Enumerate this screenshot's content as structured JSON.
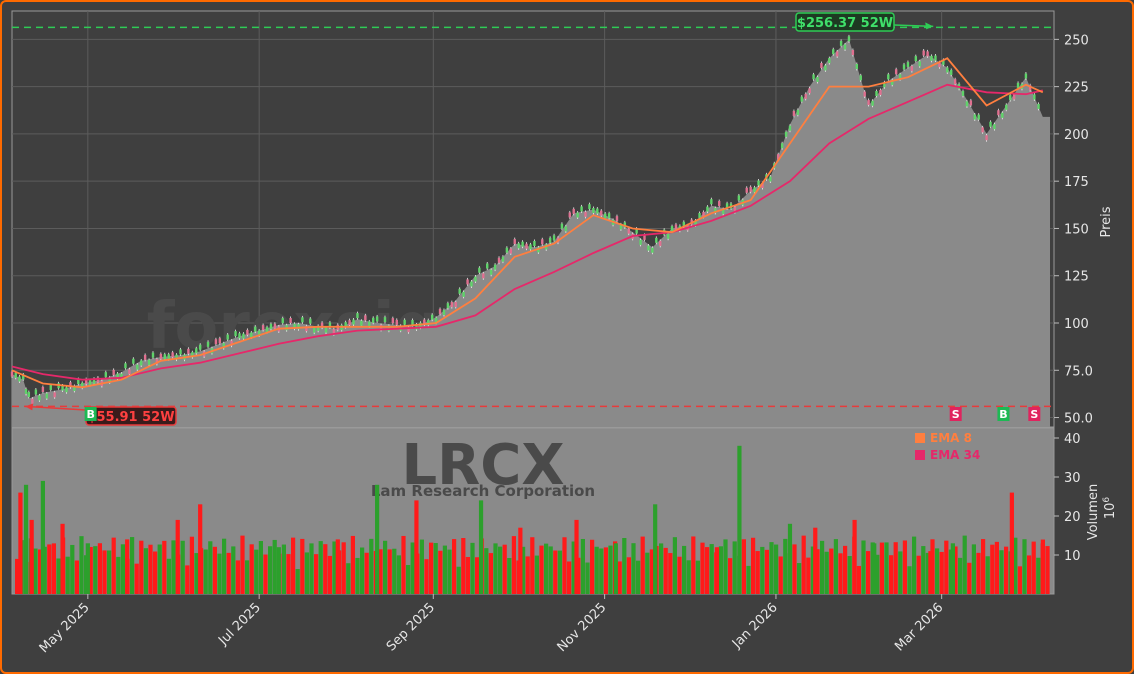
{
  "watermark": {
    "site": "forexsignale.trade",
    "ticker": "LRCX",
    "company": "Lam Research Corporation"
  },
  "colors": {
    "background": "#3f3f3f",
    "border": "#ff6a00",
    "area": "#8a8a8a",
    "up": "#2ca02c",
    "down": "#ff1a1a",
    "ema8": "#ff7f3f",
    "ema34": "#e6286a",
    "high_line": "#2ecc55",
    "low_line": "#e83b3b"
  },
  "chart_data": [
    {
      "type": "line",
      "title": "",
      "ylabel": "Preis",
      "ylim": [
        45,
        265
      ],
      "y_ticks": [
        "50.0",
        "75.0",
        "100",
        "125",
        "150",
        "175",
        "200",
        "225",
        "250"
      ],
      "x_ticks": [
        "May 2025",
        "Jul 2025",
        "Sep 2025",
        "Nov 2025",
        "Jan 2026",
        "Mar 2026"
      ],
      "x_tick_dates": [
        "2025-05-01",
        "2025-07-01",
        "2025-09-01",
        "2025-11-01",
        "2026-01-01",
        "2026-03-01"
      ],
      "x_range": [
        "2025-04-04",
        "2026-04-10"
      ],
      "series": [
        {
          "name": "",
          "kind": "close-area",
          "x": [
            "2025-04-04",
            "2025-04-08",
            "2025-04-10",
            "2025-04-15",
            "2025-04-22",
            "2025-04-29",
            "2025-05-06",
            "2025-05-13",
            "2025-05-20",
            "2025-05-27",
            "2025-06-03",
            "2025-06-10",
            "2025-06-17",
            "2025-06-24",
            "2025-07-01",
            "2025-07-08",
            "2025-07-15",
            "2025-07-22",
            "2025-07-29",
            "2025-08-05",
            "2025-08-12",
            "2025-08-19",
            "2025-08-26",
            "2025-09-02",
            "2025-09-09",
            "2025-09-16",
            "2025-09-23",
            "2025-09-30",
            "2025-10-07",
            "2025-10-14",
            "2025-10-21",
            "2025-10-28",
            "2025-11-04",
            "2025-11-11",
            "2025-11-18",
            "2025-11-25",
            "2025-12-02",
            "2025-12-09",
            "2025-12-16",
            "2025-12-23",
            "2025-12-30",
            "2026-01-06",
            "2026-01-13",
            "2026-01-20",
            "2026-01-27",
            "2026-02-03",
            "2026-02-10",
            "2026-02-17",
            "2026-02-24",
            "2026-03-03",
            "2026-03-10",
            "2026-03-17",
            "2026-03-24",
            "2026-03-31",
            "2026-04-06"
          ],
          "values": [
            73,
            70,
            60,
            63,
            65,
            68,
            70,
            74,
            80,
            82,
            83,
            85,
            89,
            93,
            96,
            99,
            100,
            98,
            97,
            102,
            100,
            99,
            98,
            103,
            112,
            125,
            130,
            142,
            140,
            143,
            158,
            160,
            155,
            148,
            140,
            150,
            152,
            162,
            160,
            170,
            177,
            205,
            225,
            240,
            250,
            215,
            228,
            235,
            242,
            235,
            218,
            200,
            215,
            230,
            209
          ]
        },
        {
          "name": "EMA 8",
          "x": [
            "2025-04-04",
            "2025-04-15",
            "2025-04-29",
            "2025-05-13",
            "2025-05-27",
            "2025-06-10",
            "2025-06-24",
            "2025-07-08",
            "2025-07-22",
            "2025-08-05",
            "2025-08-19",
            "2025-09-02",
            "2025-09-16",
            "2025-09-30",
            "2025-10-14",
            "2025-10-28",
            "2025-11-11",
            "2025-11-25",
            "2025-12-09",
            "2025-12-23",
            "2026-01-06",
            "2026-01-20",
            "2026-02-03",
            "2026-02-17",
            "2026-03-03",
            "2026-03-17",
            "2026-03-31",
            "2026-04-06"
          ],
          "values": [
            75,
            68,
            66,
            70,
            80,
            83,
            90,
            97,
            98,
            98,
            98,
            100,
            113,
            135,
            142,
            157,
            150,
            148,
            158,
            165,
            195,
            225,
            225,
            230,
            240,
            215,
            226,
            222
          ]
        },
        {
          "name": "EMA 34",
          "x": [
            "2025-04-04",
            "2025-04-15",
            "2025-04-29",
            "2025-05-13",
            "2025-05-27",
            "2025-06-10",
            "2025-06-24",
            "2025-07-08",
            "2025-07-22",
            "2025-08-05",
            "2025-08-19",
            "2025-09-02",
            "2025-09-16",
            "2025-09-30",
            "2025-10-14",
            "2025-10-28",
            "2025-11-11",
            "2025-11-25",
            "2025-12-09",
            "2025-12-23",
            "2026-01-06",
            "2026-01-20",
            "2026-02-03",
            "2026-02-17",
            "2026-03-03",
            "2026-03-17",
            "2026-03-31",
            "2026-04-06"
          ],
          "values": [
            77,
            73,
            70,
            71,
            76,
            79,
            84,
            89,
            93,
            96,
            97,
            98,
            104,
            118,
            127,
            137,
            146,
            148,
            154,
            162,
            175,
            195,
            208,
            217,
            226,
            222,
            221,
            223
          ]
        }
      ],
      "annotations": [
        {
          "text": "$256.37 52W",
          "date": "2026-02-26",
          "value": 256.37,
          "kind": "52w-high"
        },
        {
          "text": "$55.91 52W",
          "date": "2025-04-08",
          "value": 55.91,
          "kind": "52w-low"
        }
      ],
      "signals": [
        {
          "label": "B",
          "date": "2025-05-02",
          "kind": "buy"
        },
        {
          "label": "S",
          "date": "2026-03-06",
          "kind": "sell"
        },
        {
          "label": "B",
          "date": "2026-03-23",
          "kind": "buy"
        },
        {
          "label": "S",
          "date": "2026-04-03",
          "kind": "sell"
        }
      ],
      "legend": {
        "position": "top-right-of-volume-panel"
      }
    },
    {
      "type": "bar",
      "title": "",
      "ylabel": "Volumen",
      "ylabel_unit": "10^6",
      "y_ticks": [
        "10",
        "20",
        "30",
        "40"
      ],
      "ylim": [
        0,
        40
      ],
      "x": [
        "2025-04-07",
        "2025-04-09",
        "2025-04-11",
        "2025-04-15",
        "2025-04-22",
        "2025-05-01",
        "2025-05-15",
        "2025-06-02",
        "2025-06-10",
        "2025-07-08",
        "2025-07-29",
        "2025-08-12",
        "2025-08-26",
        "2025-09-18",
        "2025-10-02",
        "2025-10-22",
        "2025-11-05",
        "2025-11-19",
        "2025-12-11",
        "2025-12-19",
        "2026-01-06",
        "2026-01-15",
        "2026-01-29",
        "2026-02-05",
        "2026-02-25",
        "2026-03-05",
        "2026-03-26",
        "2026-04-06"
      ],
      "values": [
        26,
        28,
        19,
        29,
        18,
        13,
        14,
        19,
        23,
        12,
        14,
        28,
        24,
        24,
        17,
        19,
        13,
        23,
        12,
        38,
        18,
        17,
        19,
        13,
        11,
        13,
        26,
        13
      ],
      "colors": [
        "down",
        "up",
        "down",
        "up",
        "down",
        "up",
        "down",
        "down",
        "down",
        "up",
        "down",
        "up",
        "down",
        "up",
        "down",
        "down",
        "up",
        "up",
        "down",
        "up",
        "up",
        "down",
        "down",
        "up",
        "down",
        "up",
        "down",
        "down"
      ],
      "legend": [
        "EMA 8",
        "EMA 34"
      ]
    }
  ]
}
